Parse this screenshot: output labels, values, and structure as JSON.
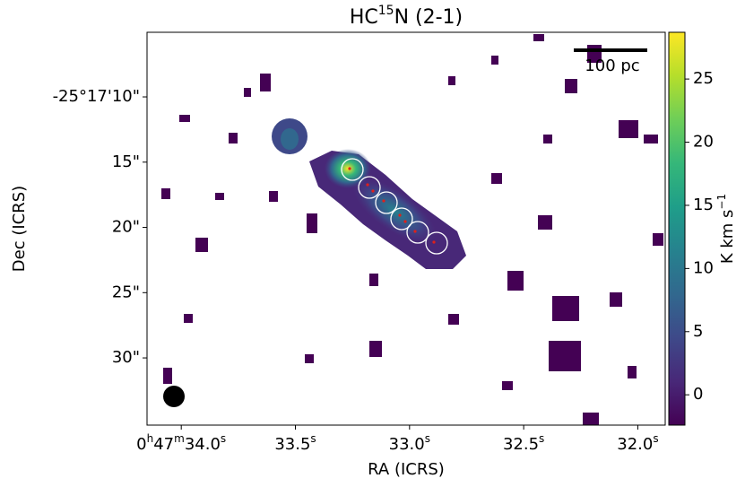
{
  "chart_data": {
    "type": "image",
    "title_parts": [
      "HC",
      "15",
      "N (2-1)"
    ],
    "xlabel": "RA (ICRS)",
    "ylabel": "Dec (ICRS)",
    "colorbar_label_parts": [
      "K km s",
      "−1"
    ],
    "scalebar_label": "100 pc",
    "xlim": [
      34.15,
      31.88
    ],
    "xticks": [
      {
        "value": 34.0,
        "label": "0h47m34.0s"
      },
      {
        "value": 33.5,
        "label": "33.5s"
      },
      {
        "value": 33.0,
        "label": "33.0s"
      },
      {
        "value": 32.5,
        "label": "32.5s"
      },
      {
        "value": 32.0,
        "label": "32.0s"
      }
    ],
    "ylim": [
      5.05,
      35.15
    ],
    "yticks": [
      {
        "value": 10,
        "label": "-25°17'10\""
      },
      {
        "value": 15,
        "label": "15\""
      },
      {
        "value": 20,
        "label": "20\""
      },
      {
        "value": 25,
        "label": "25\""
      },
      {
        "value": 30,
        "label": "30\""
      }
    ],
    "clim": [
      -2.4,
      28.7
    ],
    "cticks": [
      0,
      5,
      10,
      15,
      20,
      25
    ],
    "colormap": [
      "#440154",
      "#482878",
      "#3e4989",
      "#31688e",
      "#26828e",
      "#1f9e89",
      "#35b779",
      "#6ece58",
      "#b5de2b",
      "#fde725"
    ]
  }
}
